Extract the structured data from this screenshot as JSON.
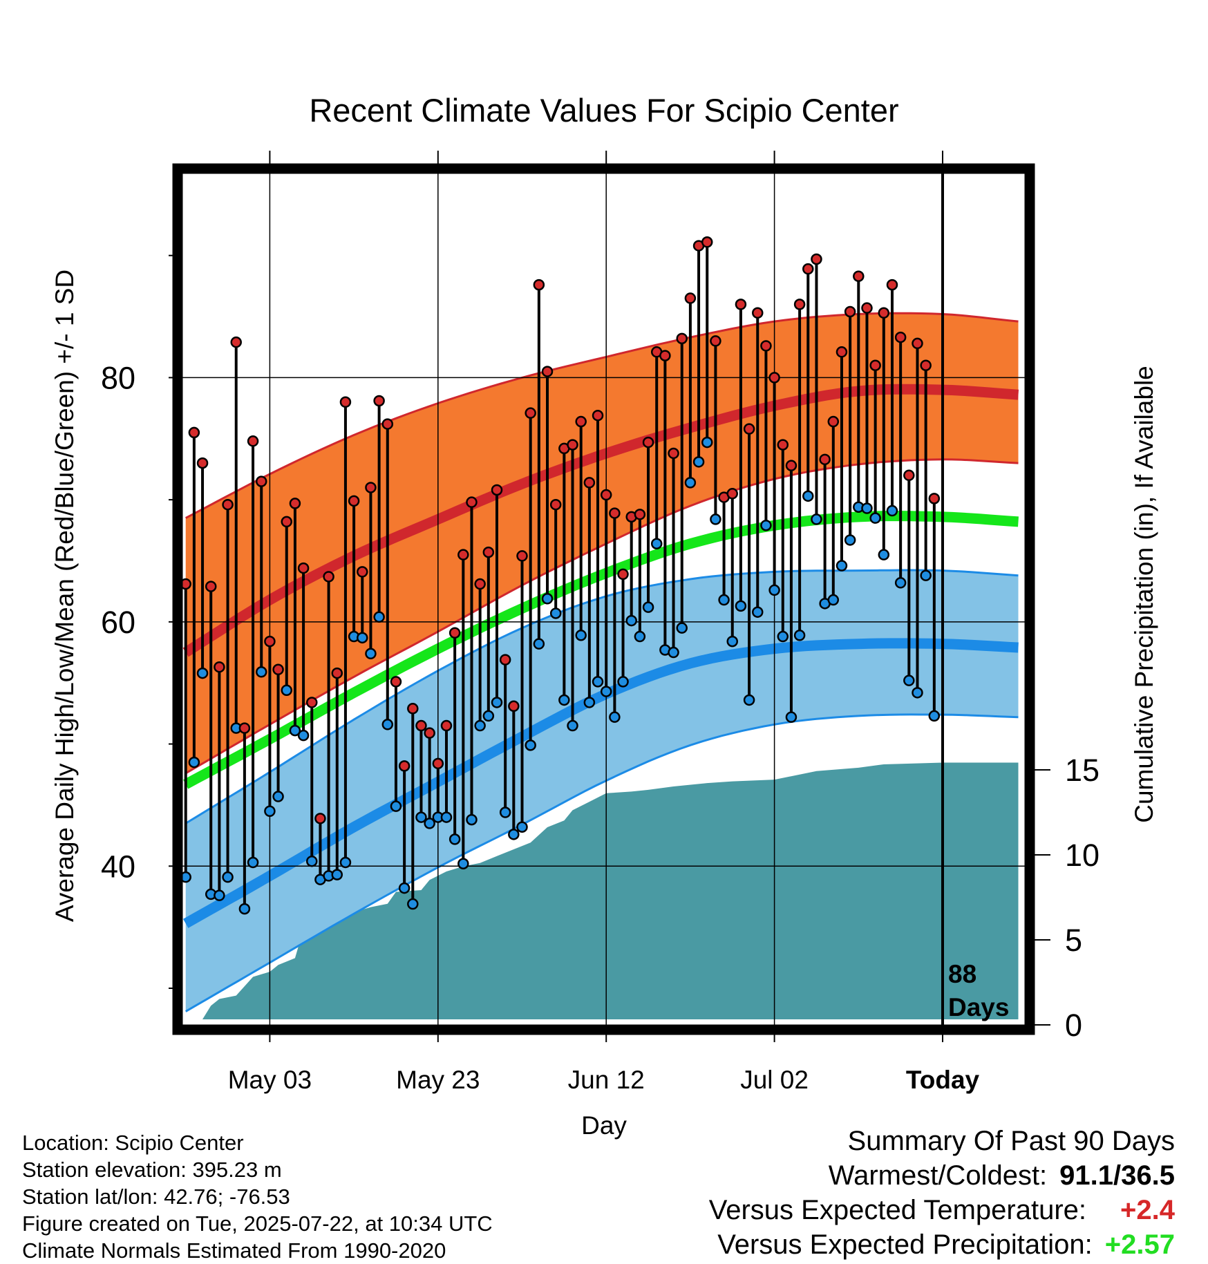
{
  "chart_data": {
    "type": "line",
    "title": "Recent Climate Values For Scipio Center",
    "xlabel": "Day",
    "ylabel": "Average Daily High/Low/Mean (Red/Blue/Green) +/- 1 SD",
    "y2label": "Cumulative Precipitation (in), If Available",
    "x_tick_labels": [
      "May 03",
      "May 23",
      "Jun 12",
      "Jul 02",
      "Today"
    ],
    "y_ticks": [
      40,
      60,
      80
    ],
    "y_minor_ticks": [
      30,
      50,
      70,
      90
    ],
    "ylim": [
      27,
      97
    ],
    "y2_ticks": [
      0,
      5,
      10,
      15
    ],
    "y2lim": [
      0,
      28.5
    ],
    "xlim_days_relative_to_today": [
      -90,
      9
    ],
    "today_marker_label": [
      "88",
      "Days"
    ],
    "grid": true,
    "normals": {
      "days": [
        -90,
        -80,
        -70,
        -60,
        -50,
        -40,
        -30,
        -20,
        -10,
        0,
        9
      ],
      "high_mean": [
        57.5,
        61.8,
        65.4,
        68.4,
        71.3,
        73.8,
        75.9,
        77.7,
        78.9,
        79.0,
        78.6
      ],
      "high_sd_upper": [
        68.5,
        72.1,
        75.3,
        77.9,
        80.0,
        81.7,
        83.3,
        84.6,
        85.2,
        85.2,
        84.6
      ],
      "high_sd_lower": [
        47.6,
        51.6,
        55.5,
        59.2,
        63.0,
        66.4,
        69.5,
        71.7,
        72.9,
        73.3,
        73.0
      ],
      "mean": [
        46.7,
        50.4,
        54.2,
        57.8,
        61.1,
        64.0,
        66.4,
        67.9,
        68.6,
        68.6,
        68.2
      ],
      "low_mean": [
        35.3,
        39.2,
        43.2,
        46.9,
        50.6,
        54.1,
        56.6,
        57.8,
        58.2,
        58.2,
        57.9
      ],
      "low_sd_upper": [
        43.5,
        47.7,
        52.0,
        56.0,
        59.5,
        62.1,
        63.5,
        64.1,
        64.2,
        64.2,
        63.8
      ],
      "low_sd_lower": [
        28.1,
        32.1,
        36.1,
        39.9,
        43.4,
        47.0,
        49.9,
        51.6,
        52.3,
        52.4,
        52.2
      ]
    },
    "daily_days": [
      -90,
      -89,
      -88,
      -87,
      -86,
      -85,
      -84,
      -83,
      -82,
      -81,
      -80,
      -79,
      -78,
      -77,
      -76,
      -75,
      -74,
      -73,
      -72,
      -71,
      -70,
      -69,
      -68,
      -67,
      -66,
      -65,
      -64,
      -63,
      -62,
      -61,
      -60,
      -59,
      -58,
      -57,
      -56,
      -55,
      -54,
      -53,
      -52,
      -51,
      -50,
      -49,
      -48,
      -47,
      -46,
      -45,
      -44,
      -43,
      -42,
      -41,
      -40,
      -39,
      -38,
      -37,
      -36,
      -35,
      -34,
      -33,
      -32,
      -31,
      -30,
      -29,
      -28,
      -27,
      -26,
      -25,
      -24,
      -23,
      -22,
      -21,
      -20,
      -19,
      -18,
      -17,
      -16,
      -15,
      -14,
      -13,
      -12,
      -11,
      -10,
      -9,
      -8,
      -7,
      -6,
      -5,
      -4,
      -3,
      -2,
      -1
    ],
    "daily_high": [
      63.1,
      75.5,
      73.0,
      62.9,
      56.3,
      69.6,
      82.9,
      51.3,
      74.8,
      71.5,
      58.4,
      56.1,
      68.2,
      69.7,
      64.4,
      53.4,
      43.9,
      63.7,
      55.8,
      78.0,
      69.9,
      64.1,
      71.0,
      78.1,
      76.2,
      55.1,
      48.2,
      52.9,
      51.5,
      50.9,
      48.4,
      51.5,
      59.1,
      65.5,
      69.8,
      63.1,
      65.7,
      70.8,
      56.9,
      53.1,
      65.4,
      77.1,
      87.6,
      80.5,
      69.6,
      74.2,
      74.5,
      76.4,
      71.4,
      76.9,
      70.4,
      68.9,
      63.9,
      68.6,
      68.8,
      74.7,
      82.1,
      81.8,
      73.8,
      83.2,
      86.5,
      90.8,
      91.1,
      83.0,
      70.2,
      70.5,
      86.0,
      75.8,
      85.3,
      82.6,
      80.0,
      74.5,
      72.8,
      86.0,
      88.9,
      89.7,
      73.3,
      76.4,
      82.1,
      85.4,
      88.3,
      85.7,
      81.0,
      85.3,
      87.6,
      83.3,
      72.0,
      82.8,
      81.0,
      70.1
    ],
    "daily_low": [
      39.1,
      48.5,
      55.8,
      37.7,
      37.6,
      39.1,
      51.3,
      36.5,
      40.3,
      55.9,
      44.5,
      45.7,
      54.4,
      51.1,
      50.7,
      40.4,
      38.9,
      39.2,
      39.3,
      40.3,
      58.8,
      58.7,
      57.4,
      60.4,
      51.6,
      44.9,
      38.2,
      36.9,
      44.0,
      43.5,
      44.0,
      44.0,
      42.2,
      40.2,
      43.8,
      51.5,
      52.3,
      53.4,
      44.4,
      42.6,
      43.2,
      49.9,
      58.2,
      61.9,
      60.7,
      53.6,
      51.5,
      58.9,
      53.4,
      55.1,
      54.3,
      52.2,
      55.1,
      60.1,
      58.8,
      61.2,
      66.4,
      57.7,
      57.5,
      59.5,
      71.4,
      73.1,
      74.7,
      68.4,
      61.8,
      58.4,
      61.3,
      53.6,
      60.8,
      67.9,
      62.6,
      58.8,
      52.2,
      58.9,
      70.3,
      68.4,
      61.5,
      61.8,
      64.6,
      66.7,
      69.4,
      69.3,
      68.5,
      65.5,
      69.1,
      63.2,
      55.2,
      54.2,
      63.8,
      52.3
    ],
    "precip_days": [
      -88,
      -87,
      -86,
      -84,
      -82,
      -80,
      -79,
      -77,
      -76,
      -74,
      -73,
      -71,
      -70,
      -68,
      -66,
      -65,
      -62,
      -61,
      -59,
      -57,
      -55,
      -53,
      -51,
      -49,
      -47,
      -45,
      -44,
      -42,
      -40,
      -37,
      -35,
      -32,
      -28,
      -25,
      -20,
      -15,
      -10,
      -7,
      0,
      9
    ],
    "precip_cum": [
      0.0,
      0.8,
      1.2,
      1.4,
      2.5,
      2.8,
      3.2,
      3.6,
      5.3,
      5.7,
      5.8,
      5.9,
      6.3,
      6.6,
      6.8,
      7.5,
      7.6,
      8.2,
      8.7,
      9.0,
      9.2,
      9.6,
      10.0,
      10.4,
      11.3,
      11.7,
      12.3,
      12.8,
      13.3,
      13.4,
      13.5,
      13.7,
      13.9,
      14.0,
      14.1,
      14.6,
      14.8,
      15.0,
      15.1,
      15.1
    ]
  },
  "colors": {
    "high_band": "#f4792f",
    "high_line": "#d0272d",
    "mean_line": "#15e61a",
    "low_band": "#83c2e6",
    "low_line": "#1c8be6",
    "precip_fill": "#4a9aa3",
    "high_marker": "#d52c2c",
    "low_marker": "#1f8de0",
    "positive_temp": "#d62728",
    "positive_precip": "#22dd22"
  },
  "footer": {
    "location": "Location: Scipio Center",
    "elevation": "Station elevation: 395.23 m",
    "latlon": "Station lat/lon: 42.76; -76.53",
    "created": "Figure created on Tue, 2025-07-22, at 10:34 UTC",
    "normals": "Climate Normals Estimated From 1990-2020"
  },
  "summary": {
    "heading": "Summary Of Past 90 Days",
    "warmest_coldest_label": "Warmest/Coldest:",
    "warmest_coldest_value": "91.1/36.5",
    "temp_label": "Versus Expected Temperature:",
    "temp_value": "+2.4",
    "precip_label": "Versus Expected Precipitation:",
    "precip_value": "+2.57"
  }
}
